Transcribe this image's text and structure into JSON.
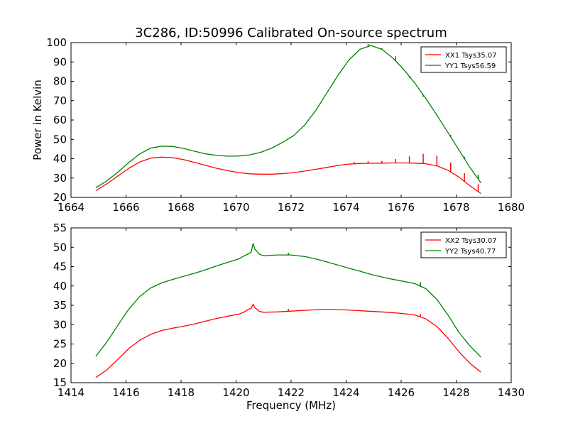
{
  "title": "3C286, ID:50996 Calibrated On-source spectrum",
  "colors": {
    "red": "#ff0000",
    "green": "#008000"
  },
  "chart_data": [
    {
      "type": "line",
      "ylabel": "Power in Kelvin",
      "xlabel": "",
      "xlim": [
        1664,
        1680
      ],
      "ylim": [
        20,
        100
      ],
      "xticks": [
        1664,
        1666,
        1668,
        1670,
        1672,
        1674,
        1676,
        1678,
        1680
      ],
      "yticks": [
        20,
        30,
        40,
        50,
        60,
        70,
        80,
        90,
        100
      ],
      "legend": "top-right",
      "grid": false,
      "series": [
        {
          "name": "XX1 Tsys35.07",
          "color": "red",
          "x": [
            1664.9,
            1665.3,
            1665.7,
            1666.1,
            1666.5,
            1666.9,
            1667.3,
            1667.7,
            1668.1,
            1668.5,
            1668.9,
            1669.3,
            1669.7,
            1670.1,
            1670.5,
            1670.9,
            1671.3,
            1671.7,
            1672.1,
            1672.5,
            1672.9,
            1673.3,
            1673.7,
            1674.1,
            1674.5,
            1674.9,
            1675.3,
            1675.7,
            1676.1,
            1676.5,
            1676.9,
            1677.3,
            1677.7,
            1678.1,
            1678.5,
            1678.9
          ],
          "y": [
            23.5,
            27.0,
            31.0,
            35.0,
            38.3,
            40.3,
            40.8,
            40.5,
            39.5,
            38.0,
            36.5,
            35.0,
            33.8,
            32.8,
            32.2,
            32.0,
            32.0,
            32.3,
            32.8,
            33.6,
            34.5,
            35.5,
            36.5,
            37.2,
            37.5,
            37.6,
            37.7,
            37.8,
            37.8,
            37.7,
            37.4,
            36.3,
            34.0,
            30.5,
            26.0,
            22.0
          ],
          "spikes": [
            {
              "x": 1674.3,
              "y": 38.2
            },
            {
              "x": 1674.8,
              "y": 38.7
            },
            {
              "x": 1675.3,
              "y": 38.9
            },
            {
              "x": 1675.8,
              "y": 39.8
            },
            {
              "x": 1676.3,
              "y": 41.2
            },
            {
              "x": 1676.8,
              "y": 42.5
            },
            {
              "x": 1677.3,
              "y": 41.6
            },
            {
              "x": 1677.8,
              "y": 38.0
            },
            {
              "x": 1678.3,
              "y": 32.5
            },
            {
              "x": 1678.8,
              "y": 26.8
            }
          ]
        },
        {
          "name": "YY1 Tsys56.59",
          "color": "green",
          "x": [
            1664.9,
            1665.3,
            1665.7,
            1666.1,
            1666.5,
            1666.9,
            1667.3,
            1667.7,
            1668.1,
            1668.5,
            1668.9,
            1669.3,
            1669.7,
            1670.1,
            1670.5,
            1670.9,
            1671.3,
            1671.7,
            1672.1,
            1672.5,
            1672.9,
            1673.3,
            1673.7,
            1674.1,
            1674.5,
            1674.9,
            1675.3,
            1675.7,
            1676.1,
            1676.5,
            1676.9,
            1677.3,
            1677.7,
            1678.1,
            1678.5,
            1678.9
          ],
          "y": [
            25.0,
            28.5,
            33.0,
            38.0,
            42.5,
            45.5,
            46.5,
            46.3,
            45.3,
            43.8,
            42.5,
            41.7,
            41.3,
            41.4,
            42.0,
            43.3,
            45.5,
            48.5,
            52.0,
            57.5,
            65.0,
            74.0,
            83.0,
            91.0,
            96.5,
            98.5,
            96.5,
            92.0,
            86.0,
            79.0,
            71.0,
            62.5,
            53.5,
            44.5,
            35.5,
            27.5
          ],
          "spikes": [
            {
              "x": 1674.8,
              "y": 99.3
            },
            {
              "x": 1675.3,
              "y": 97.1
            },
            {
              "x": 1675.8,
              "y": 92.9
            },
            {
              "x": 1676.3,
              "y": 81.8
            },
            {
              "x": 1676.8,
              "y": 72.0
            },
            {
              "x": 1677.3,
              "y": 62.2
            },
            {
              "x": 1677.8,
              "y": 52.3
            },
            {
              "x": 1678.3,
              "y": 41.0
            },
            {
              "x": 1678.8,
              "y": 31.8
            }
          ]
        }
      ]
    },
    {
      "type": "line",
      "ylabel": "",
      "xlabel": "Frequency (MHz)",
      "xlim": [
        1414,
        1430
      ],
      "ylim": [
        15,
        55
      ],
      "xticks": [
        1414,
        1416,
        1418,
        1420,
        1422,
        1424,
        1426,
        1428,
        1430
      ],
      "yticks": [
        15,
        20,
        25,
        30,
        35,
        40,
        45,
        50,
        55
      ],
      "legend": "top-right",
      "grid": false,
      "series": [
        {
          "name": "XX2 Tsys30.07",
          "color": "red",
          "x": [
            1414.9,
            1415.3,
            1415.7,
            1416.1,
            1416.5,
            1416.9,
            1417.3,
            1417.7,
            1418.1,
            1418.5,
            1418.9,
            1419.3,
            1419.7,
            1420.1,
            1420.3,
            1420.45,
            1420.55,
            1420.62,
            1420.68,
            1420.75,
            1420.85,
            1421.0,
            1421.5,
            1422.0,
            1422.5,
            1423.0,
            1423.5,
            1424.0,
            1424.5,
            1425.0,
            1425.5,
            1426.0,
            1426.5,
            1426.9,
            1427.3,
            1427.7,
            1428.1,
            1428.5,
            1428.9
          ],
          "y": [
            16.3,
            18.3,
            21.0,
            23.8,
            26.0,
            27.5,
            28.5,
            29.1,
            29.6,
            30.2,
            30.9,
            31.6,
            32.2,
            32.7,
            33.3,
            34.0,
            34.2,
            35.3,
            34.4,
            34.0,
            33.4,
            33.2,
            33.3,
            33.5,
            33.7,
            33.9,
            33.9,
            33.8,
            33.6,
            33.4,
            33.2,
            32.9,
            32.5,
            31.5,
            29.5,
            26.5,
            23.0,
            20.0,
            17.7
          ],
          "spikes": [
            {
              "x": 1421.9,
              "y": 34.1
            },
            {
              "x": 1426.7,
              "y": 32.8
            }
          ]
        },
        {
          "name": "YY2 Tsys40.77",
          "color": "green",
          "x": [
            1414.9,
            1415.3,
            1415.7,
            1416.1,
            1416.5,
            1416.9,
            1417.3,
            1417.7,
            1418.1,
            1418.5,
            1418.9,
            1419.3,
            1419.7,
            1420.1,
            1420.3,
            1420.45,
            1420.55,
            1420.62,
            1420.68,
            1420.75,
            1420.85,
            1421.0,
            1421.5,
            1422.0,
            1422.5,
            1423.0,
            1423.5,
            1424.0,
            1424.5,
            1425.0,
            1425.5,
            1426.0,
            1426.5,
            1426.9,
            1427.3,
            1427.7,
            1428.1,
            1428.5,
            1428.9
          ],
          "y": [
            21.8,
            25.5,
            29.8,
            34.0,
            37.3,
            39.5,
            40.8,
            41.7,
            42.5,
            43.3,
            44.2,
            45.2,
            46.1,
            47.0,
            47.8,
            48.3,
            48.8,
            51.0,
            49.5,
            49.0,
            48.2,
            47.8,
            48.0,
            48.0,
            47.6,
            46.8,
            45.8,
            44.8,
            43.8,
            42.8,
            42.0,
            41.3,
            40.6,
            39.3,
            36.5,
            32.5,
            28.0,
            24.5,
            21.6
          ],
          "spikes": [
            {
              "x": 1421.9,
              "y": 48.6
            },
            {
              "x": 1426.7,
              "y": 41.0
            }
          ]
        }
      ]
    }
  ]
}
